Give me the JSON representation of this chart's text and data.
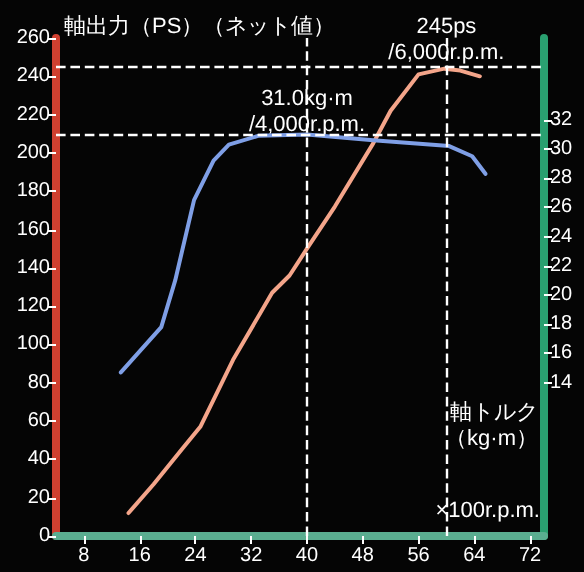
{
  "chart_data": {
    "type": "line",
    "xlabel": "×100r.p.m.",
    "ylabel": "軸出力（PS）（ネット値）",
    "y2label": "軸トルク（kg·m）",
    "xlim": [
      4,
      74
    ],
    "xticks": [
      8,
      16,
      24,
      32,
      40,
      48,
      56,
      64,
      72
    ],
    "ylim": [
      0,
      260
    ],
    "yticks": [
      0,
      20,
      40,
      60,
      80,
      100,
      120,
      140,
      160,
      180,
      200,
      220,
      240,
      260
    ],
    "y2lim": [
      3.5,
      37.6
    ],
    "y2ticks": [
      14,
      16,
      18,
      20,
      22,
      24,
      26,
      28,
      30,
      32
    ],
    "series": [
      {
        "color": "#f4a58a",
        "x": [
          14.4,
          18,
          22,
          24.7,
          29.4,
          35,
          37.5,
          40,
          44,
          49.5,
          52,
          56,
          59.7,
          62,
          64.8
        ],
        "values": [
          12,
          27,
          45,
          57,
          92,
          127,
          136,
          150,
          172,
          205,
          222,
          241,
          244,
          243,
          240
        ]
      },
      {
        "color": "#7f9fe6",
        "axis": "y2",
        "x": [
          13.3,
          19.1,
          21.1,
          23.8,
          26.6,
          28.8,
          33,
          40,
          49.5,
          60.4,
          63.7,
          65.6
        ],
        "values": [
          14.7,
          17.8,
          21.0,
          26.5,
          29.2,
          30.3,
          30.9,
          31.0,
          30.6,
          30.2,
          29.5,
          28.3
        ]
      }
    ],
    "ref_lines": [
      {
        "axis": "x",
        "value": 60,
        "label": "245ps\n/6,000r.p.m.",
        "line_style": "dashed",
        "color": "#ffffff"
      },
      {
        "axis": "x",
        "value": 40,
        "label": "31.0kg·m\n/4,000r.p.m.",
        "line_style": "dashed",
        "color": "#ffffff"
      },
      {
        "axis": "y",
        "value": 245,
        "line_style": "dashed",
        "color": "#ffffff"
      },
      {
        "axis": "y2",
        "value": 31,
        "line_style": "dashed",
        "color": "#ffffff"
      }
    ],
    "grid": false,
    "marker": "none",
    "line_style": "solid"
  }
}
